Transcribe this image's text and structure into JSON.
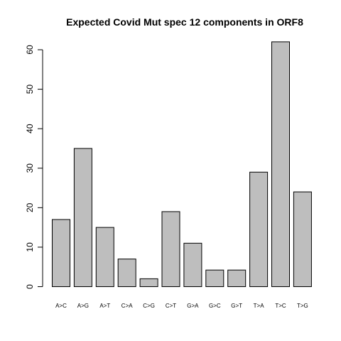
{
  "chart_data": {
    "type": "bar",
    "title": "Expected Covid Mut spec 12 components in ORF8",
    "xlabel": "",
    "ylabel": "",
    "categories": [
      "A>C",
      "A>G",
      "A>T",
      "C>A",
      "C>G",
      "C>T",
      "G>A",
      "G>C",
      "G>T",
      "T>A",
      "T>C",
      "T>G"
    ],
    "values": [
      17,
      35,
      15,
      7,
      2,
      19,
      11,
      4.2,
      4.2,
      29,
      62,
      24
    ],
    "yticks": [
      0,
      10,
      20,
      30,
      40,
      50,
      60
    ],
    "ylim": [
      0,
      62
    ],
    "bar_color": "#bebebe",
    "bar_edge_color": "#000000",
    "grid": false,
    "legend": "none"
  }
}
